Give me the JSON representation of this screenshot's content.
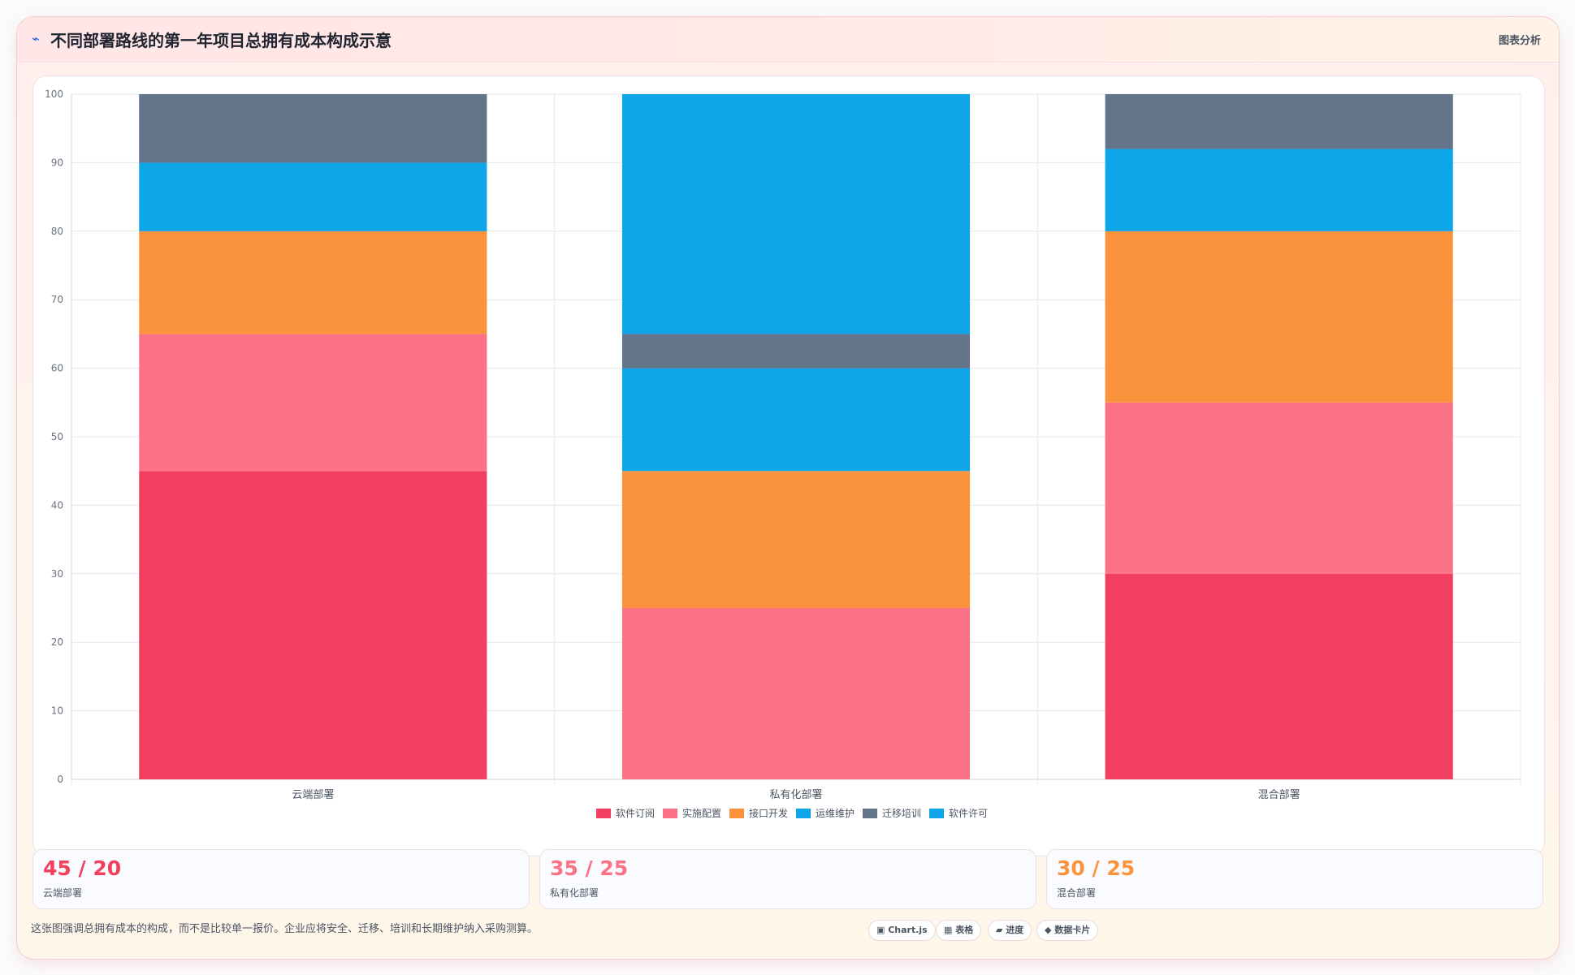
{
  "header": {
    "icon": "⌁",
    "title": "不同部署路线的第一年项目总拥有成本构成示意",
    "right_label": "图表分析"
  },
  "chart_data": {
    "type": "bar",
    "stacked": true,
    "categories": [
      "云端部署",
      "私有化部署",
      "混合部署"
    ],
    "series": [
      {
        "name": "软件订阅",
        "values": [
          45,
          0,
          30
        ],
        "color": "#f23f5f"
      },
      {
        "name": "实施配置",
        "values": [
          20,
          25,
          25
        ],
        "color": "#fb7185"
      },
      {
        "name": "接口开发",
        "values": [
          15,
          20,
          25
        ],
        "color": "#fb923c"
      },
      {
        "name": "运维维护",
        "values": [
          10,
          15,
          12
        ],
        "color": "#0ea5e9"
      },
      {
        "name": "迁移培训",
        "values": [
          10,
          5,
          8
        ],
        "color": "#64748b"
      },
      {
        "name": "软件许可",
        "values": [
          0,
          35,
          0
        ],
        "color": "#0ea5e9"
      }
    ],
    "ylim": [
      0,
      100
    ],
    "yticks": [
      0,
      10,
      20,
      30,
      40,
      50,
      60,
      70,
      80,
      90,
      100
    ],
    "grid": true,
    "legend_position": "bottom"
  },
  "kpis": [
    {
      "value": "45 / 20",
      "label": "云端部署",
      "color": "#f23f5f"
    },
    {
      "value": "35 / 25",
      "label": "私有化部署",
      "color": "#fb7185"
    },
    {
      "value": "30 / 25",
      "label": "混合部署",
      "color": "#fb923c"
    }
  ],
  "footer": {
    "note": "这张图强调总拥有成本的构成，而不是比较单一报价。企业应将安全、迁移、培训和长期维护纳入采购测算。",
    "chips": [
      "▣ Chart.js",
      "▦ 表格",
      "▰ 进度",
      "◆ 数据卡片"
    ]
  }
}
